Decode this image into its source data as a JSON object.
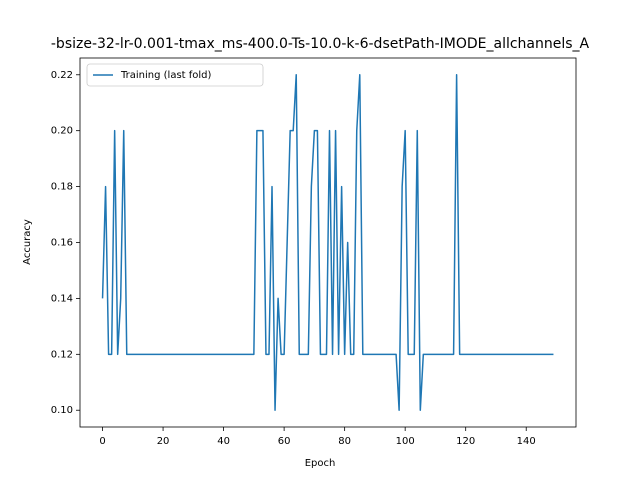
{
  "chart_data": {
    "type": "line",
    "title": "-bsize-32-lr-0.001-tmax_ms-400.0-Ts-10.0-k-6-dsetPath-IMODE_allchannels_A",
    "x_label": "Epoch",
    "y_label": "Accuracy",
    "x": [
      0,
      1,
      2,
      3,
      4,
      5,
      6,
      7,
      8,
      9,
      10,
      11,
      12,
      13,
      14,
      15,
      16,
      17,
      18,
      19,
      20,
      21,
      22,
      23,
      24,
      25,
      26,
      27,
      28,
      29,
      30,
      31,
      32,
      33,
      34,
      35,
      36,
      37,
      38,
      39,
      40,
      41,
      42,
      43,
      44,
      45,
      46,
      47,
      48,
      49,
      50,
      51,
      52,
      53,
      54,
      55,
      56,
      57,
      58,
      59,
      60,
      61,
      62,
      63,
      64,
      65,
      66,
      67,
      68,
      69,
      70,
      71,
      72,
      73,
      74,
      75,
      76,
      77,
      78,
      79,
      80,
      81,
      82,
      83,
      84,
      85,
      86,
      87,
      88,
      89,
      90,
      91,
      92,
      93,
      94,
      95,
      96,
      97,
      98,
      99,
      100,
      101,
      102,
      103,
      104,
      105,
      106,
      107,
      108,
      109,
      110,
      111,
      112,
      113,
      114,
      115,
      116,
      117,
      118,
      119,
      120,
      121,
      122,
      123,
      124,
      125,
      126,
      127,
      128,
      129,
      130,
      131,
      132,
      133,
      134,
      135,
      136,
      137,
      138,
      139,
      140,
      141,
      142,
      143,
      144,
      145,
      146,
      147,
      148,
      149
    ],
    "series": [
      {
        "name": "Training (last fold)",
        "color": "#1f77b4",
        "values": [
          0.14,
          0.18,
          0.12,
          0.12,
          0.2,
          0.12,
          0.14,
          0.2,
          0.12,
          0.12,
          0.12,
          0.12,
          0.12,
          0.12,
          0.12,
          0.12,
          0.12,
          0.12,
          0.12,
          0.12,
          0.12,
          0.12,
          0.12,
          0.12,
          0.12,
          0.12,
          0.12,
          0.12,
          0.12,
          0.12,
          0.12,
          0.12,
          0.12,
          0.12,
          0.12,
          0.12,
          0.12,
          0.12,
          0.12,
          0.12,
          0.12,
          0.12,
          0.12,
          0.12,
          0.12,
          0.12,
          0.12,
          0.12,
          0.12,
          0.12,
          0.12,
          0.2,
          0.2,
          0.2,
          0.12,
          0.12,
          0.18,
          0.1,
          0.14,
          0.12,
          0.12,
          0.16,
          0.2,
          0.2,
          0.22,
          0.12,
          0.12,
          0.12,
          0.12,
          0.18,
          0.2,
          0.2,
          0.12,
          0.12,
          0.12,
          0.2,
          0.12,
          0.2,
          0.12,
          0.18,
          0.12,
          0.16,
          0.12,
          0.12,
          0.2,
          0.22,
          0.12,
          0.12,
          0.12,
          0.12,
          0.12,
          0.12,
          0.12,
          0.12,
          0.12,
          0.12,
          0.12,
          0.12,
          0.1,
          0.18,
          0.2,
          0.12,
          0.12,
          0.12,
          0.2,
          0.1,
          0.12,
          0.12,
          0.12,
          0.12,
          0.12,
          0.12,
          0.12,
          0.12,
          0.12,
          0.12,
          0.12,
          0.22,
          0.12,
          0.12,
          0.12,
          0.12,
          0.12,
          0.12,
          0.12,
          0.12,
          0.12,
          0.12,
          0.12,
          0.12,
          0.12,
          0.12,
          0.12,
          0.12,
          0.12,
          0.12,
          0.12,
          0.12,
          0.12,
          0.12,
          0.12,
          0.12,
          0.12,
          0.12,
          0.12,
          0.12,
          0.12,
          0.12,
          0.12,
          0.12
        ]
      }
    ],
    "xlim": [
      -7.45,
      156.45
    ],
    "xticks": [
      0,
      20,
      40,
      60,
      80,
      100,
      120,
      140
    ],
    "ylim": [
      0.094,
      0.226
    ],
    "yticks": [
      {
        "value": 0.1,
        "label": "0.10"
      },
      0.12,
      0.14,
      0.16,
      0.18,
      {
        "value": 0.2,
        "label": "0.20"
      },
      0.22
    ],
    "legend": "upper left"
  }
}
